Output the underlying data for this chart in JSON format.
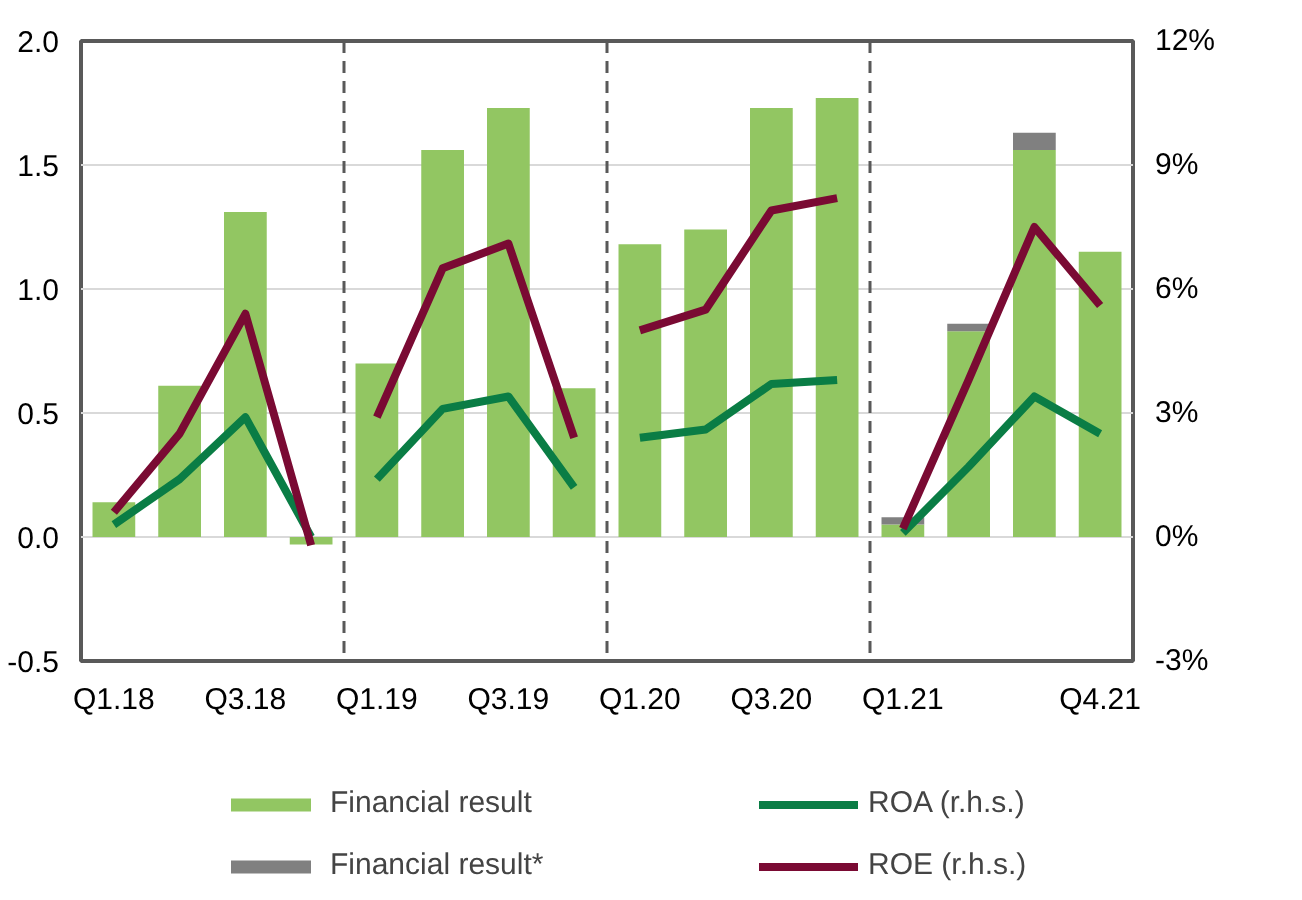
{
  "chart_data": {
    "type": "bar",
    "stacked": true,
    "categories": [
      "Q1.18",
      null,
      "Q3.18",
      null,
      "Q1.19",
      null,
      "Q3.19",
      null,
      "Q1.20",
      null,
      "Q3.20",
      null,
      "Q1.21",
      null,
      null,
      "Q4.21"
    ],
    "series": [
      {
        "name": "Financial result",
        "color": "#92c662",
        "values": [
          0.14,
          0.61,
          1.31,
          -0.03,
          0.7,
          1.56,
          1.73,
          0.6,
          1.18,
          1.24,
          1.73,
          1.77,
          0.05,
          0.83,
          1.56,
          1.15
        ]
      },
      {
        "name": "Financial result*",
        "color": "#808080",
        "values": [
          null,
          null,
          null,
          null,
          null,
          null,
          null,
          null,
          null,
          null,
          null,
          null,
          0.03,
          0.03,
          0.07,
          null
        ]
      },
      {
        "name": "ROA (r.h.s.)",
        "type": "line",
        "axis": "y2",
        "color": "#0a7d45",
        "values": [
          0.3,
          1.4,
          2.9,
          0.0,
          1.4,
          3.1,
          3.4,
          1.2,
          2.4,
          2.6,
          3.7,
          3.8,
          0.1,
          1.7,
          3.4,
          2.5
        ]
      },
      {
        "name": "ROE (r.h.s.)",
        "type": "line",
        "axis": "y2",
        "color": "#7a0a33",
        "values": [
          0.6,
          2.5,
          5.4,
          -0.2,
          2.9,
          6.5,
          7.1,
          2.4,
          5.0,
          5.5,
          7.9,
          8.2,
          0.2,
          3.8,
          7.5,
          5.6
        ]
      }
    ],
    "ylim": [
      -0.5,
      2.0
    ],
    "yticks": [
      {
        "value": -0.5,
        "label": "-0.5"
      },
      {
        "value": 0,
        "label": "0.0"
      },
      {
        "value": 0.5,
        "label": "0.5"
      },
      {
        "value": 1,
        "label": "1.0"
      },
      {
        "value": 1.5,
        "label": "1.5"
      },
      {
        "value": 2,
        "label": "2.0"
      }
    ],
    "y2lim": [
      -3,
      12
    ],
    "y2ticks": [
      {
        "value": -3,
        "label": "-3%"
      },
      {
        "value": 0,
        "label": "0%"
      },
      {
        "value": 3,
        "label": "3%"
      },
      {
        "value": 6,
        "label": "6%"
      },
      {
        "value": 9,
        "label": "9%"
      },
      {
        "value": 12,
        "label": "12%"
      }
    ],
    "grid": "y",
    "legend": "bottom",
    "line_style": "solid",
    "marker": "none"
  }
}
